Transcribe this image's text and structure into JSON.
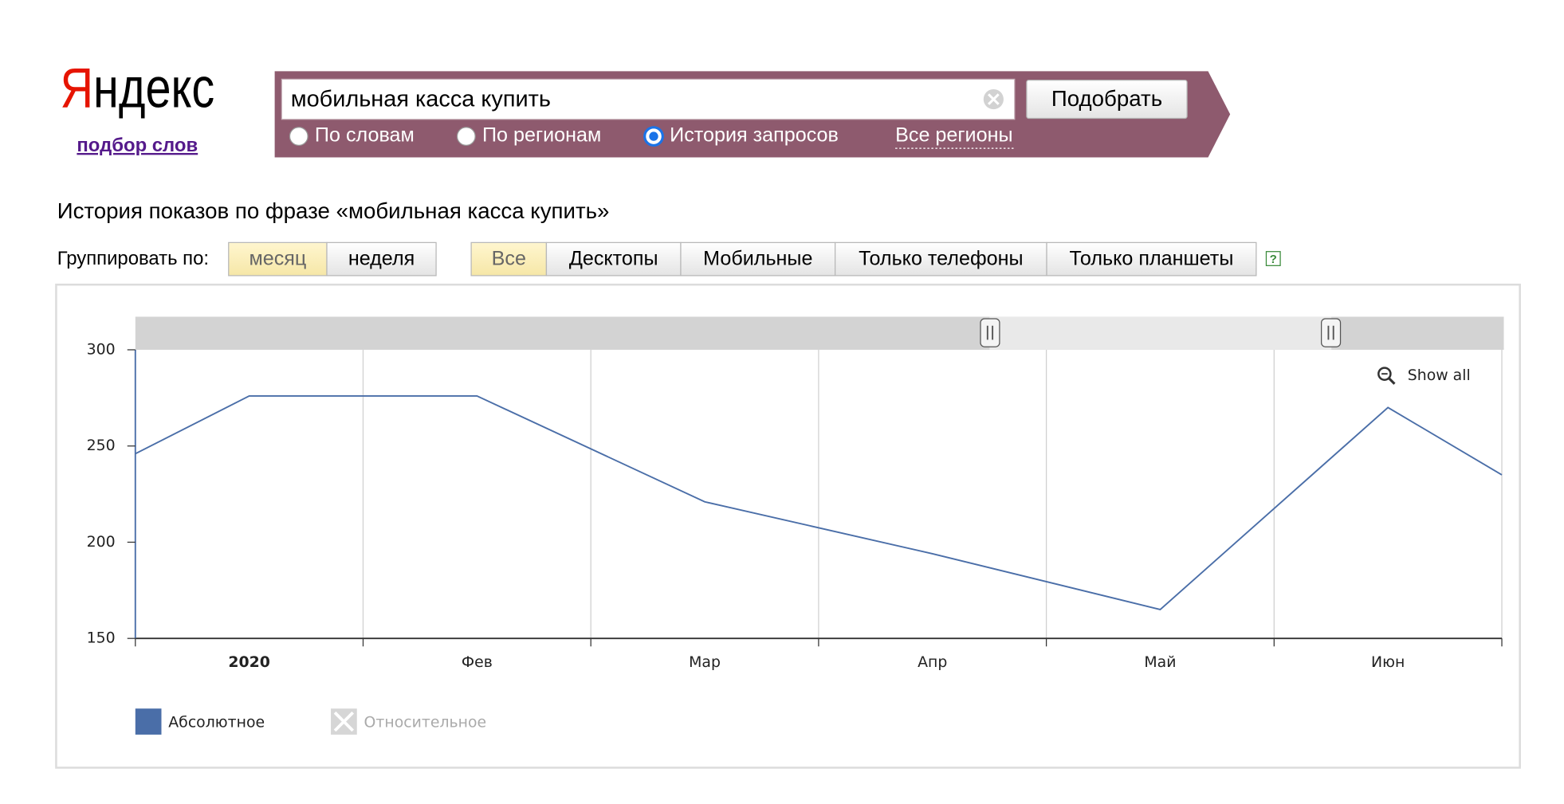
{
  "header": {
    "logo": "Яндекс",
    "subtitle": "подбор слов"
  },
  "search": {
    "query": "мобильная касса купить",
    "button": "Подобрать",
    "modes": [
      "По словам",
      "По регионам",
      "История запросов"
    ],
    "selected_mode": 2,
    "region": "Все регионы"
  },
  "heading": "История показов по фразе «мобильная касса купить»",
  "grouping": {
    "label": "Группировать по:",
    "options": [
      "месяц",
      "неделя"
    ],
    "selected": 0
  },
  "devices": {
    "options": [
      "Все",
      "Десктопы",
      "Мобильные",
      "Только телефоны",
      "Только планшеты"
    ],
    "selected": 0,
    "help": "?"
  },
  "chart_data": {
    "type": "line",
    "categories": [
      null,
      "2020",
      "Фев",
      "Мар",
      "Апр",
      "Май",
      "Июн",
      null
    ],
    "series": [
      {
        "name": "Абсолютное",
        "color": "#4a6ea8",
        "values": [
          246,
          276,
          276,
          221,
          194,
          165,
          270,
          235
        ]
      }
    ],
    "disabled_legend": "Относительное",
    "ylim": [
      150,
      300
    ],
    "yticks": [
      150,
      200,
      250,
      300
    ],
    "zoom_button": "Show all"
  }
}
